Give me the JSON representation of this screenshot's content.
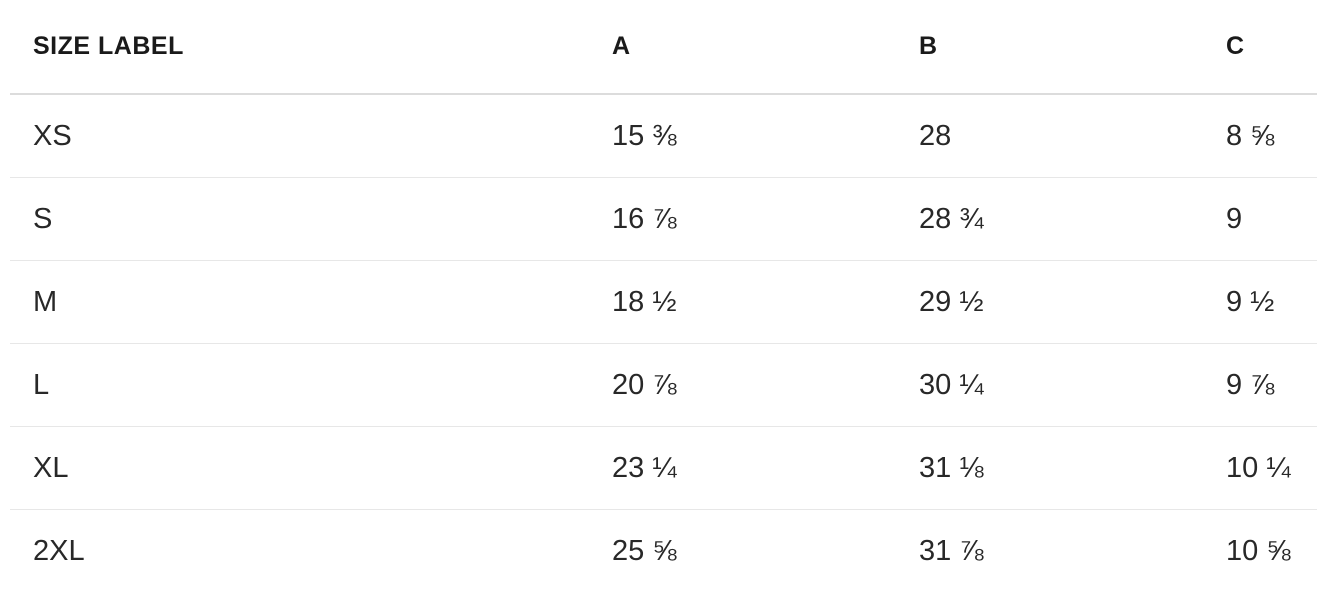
{
  "table": {
    "columns": [
      "SIZE LABEL",
      "A",
      "B",
      "C"
    ],
    "rows": [
      {
        "size": "XS",
        "a": "15 ⅜",
        "b": "28",
        "c": "8 ⅝"
      },
      {
        "size": "S",
        "a": "16 ⅞",
        "b": "28 ¾",
        "c": "9"
      },
      {
        "size": "M",
        "a": "18 ½",
        "b": "29 ½",
        "c": "9 ½"
      },
      {
        "size": "L",
        "a": "20 ⅞",
        "b": "30 ¼",
        "c": "9 ⅞"
      },
      {
        "size": "XL",
        "a": "23 ¼",
        "b": "31 ⅛",
        "c": "10 ¼"
      },
      {
        "size": "2XL",
        "a": "25 ⅝",
        "b": "31 ⅞",
        "c": "10 ⅝"
      }
    ],
    "colors": {
      "text": "#282828",
      "header_text": "#1a1a1a",
      "header_divider": "#dcdcdc",
      "row_divider": "#e7e7e7",
      "background": "#ffffff"
    }
  }
}
